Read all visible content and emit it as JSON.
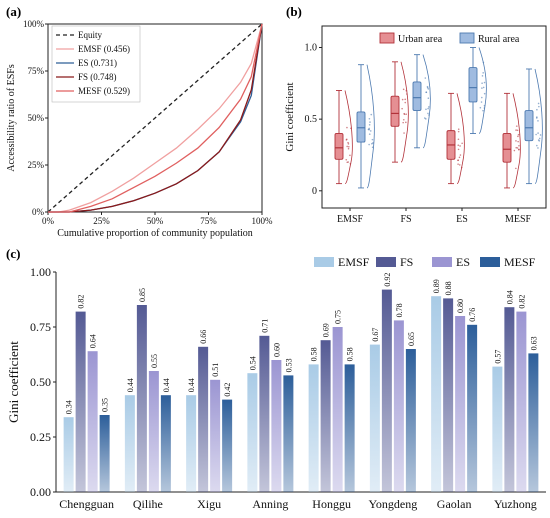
{
  "panel_labels": {
    "a": "(a)",
    "b": "(b)",
    "c": "(c)"
  },
  "colors": {
    "equity": "#222222",
    "emsf_curve": "#f0a0a0",
    "es_curve": "#2f5f98",
    "fs_curve": "#8b1a1a",
    "mesf_curve": "#e06060",
    "urban_fill": "#e58f93",
    "urban_edge": "#b2323a",
    "rural_fill": "#9fbbe0",
    "rural_edge": "#4d7ab0",
    "c_emsf": "#a9cbe6",
    "c_fs": "#545a94",
    "c_es": "#9b95d2",
    "c_mesf": "#2c5e9a"
  },
  "chart_data": [
    {
      "panel": "a",
      "type": "line",
      "xlabel": "Cumulative proportion of community population",
      "ylabel": "Accessibility ratio of ESFs",
      "xlim": [
        0,
        100
      ],
      "ylim": [
        0,
        100
      ],
      "xticks": [
        "0%",
        "25%",
        "50%",
        "75%",
        "100%"
      ],
      "yticks": [
        "0%",
        "25%",
        "50%",
        "75%",
        "100%"
      ],
      "legend_position": "top-left",
      "series": [
        {
          "name": "Equity",
          "style": "dashed",
          "x": [
            0,
            100
          ],
          "y": [
            0,
            100
          ]
        },
        {
          "name": "EMSF (0.456)",
          "x": [
            0,
            5,
            10,
            20,
            30,
            40,
            50,
            60,
            70,
            80,
            90,
            95,
            100
          ],
          "y": [
            0,
            0,
            1,
            5,
            11,
            18,
            26,
            34,
            44,
            55,
            69,
            79,
            100
          ]
        },
        {
          "name": "ES (0.731)",
          "x": [
            0,
            10,
            20,
            30,
            40,
            50,
            60,
            70,
            80,
            90,
            95,
            100
          ],
          "y": [
            0,
            0,
            1,
            3,
            6,
            10,
            15,
            22,
            32,
            48,
            62,
            100
          ]
        },
        {
          "name": "FS (0.748)",
          "x": [
            0,
            10,
            20,
            30,
            40,
            50,
            60,
            70,
            80,
            90,
            95,
            100
          ],
          "y": [
            0,
            0,
            1,
            3,
            6,
            10,
            15,
            22,
            32,
            49,
            65,
            100
          ]
        },
        {
          "name": "MESF (0.529)",
          "x": [
            0,
            10,
            20,
            30,
            40,
            50,
            60,
            70,
            80,
            90,
            95,
            100
          ],
          "y": [
            0,
            0,
            3,
            7,
            13,
            19,
            26,
            34,
            45,
            60,
            72,
            100
          ]
        }
      ]
    },
    {
      "panel": "b",
      "type": "box",
      "ylabel": "Gini coefficient",
      "ylim": [
        -0.12,
        1.15
      ],
      "yticks": [
        "0",
        "0.5",
        "1.0"
      ],
      "legend_position": "top-right",
      "categories": [
        "EMSF",
        "FS",
        "ES",
        "MESF"
      ],
      "series": [
        {
          "name": "Urban area",
          "boxes": [
            {
              "q1": 0.22,
              "median": 0.3,
              "q3": 0.4,
              "whisker_low": 0.05,
              "whisker_high": 0.7,
              "mean": 0.33
            },
            {
              "q1": 0.45,
              "median": 0.54,
              "q3": 0.66,
              "whisker_low": 0.2,
              "whisker_high": 0.9,
              "mean": 0.55
            },
            {
              "q1": 0.22,
              "median": 0.32,
              "q3": 0.42,
              "whisker_low": 0.05,
              "whisker_high": 0.68,
              "mean": 0.33
            },
            {
              "q1": 0.2,
              "median": 0.29,
              "q3": 0.4,
              "whisker_low": 0.02,
              "whisker_high": 0.68,
              "mean": 0.31
            }
          ]
        },
        {
          "name": "Rural area",
          "boxes": [
            {
              "q1": 0.34,
              "median": 0.44,
              "q3": 0.55,
              "whisker_low": 0.02,
              "whisker_high": 0.88,
              "mean": 0.45
            },
            {
              "q1": 0.56,
              "median": 0.65,
              "q3": 0.76,
              "whisker_low": 0.3,
              "whisker_high": 0.95,
              "mean": 0.65
            },
            {
              "q1": 0.62,
              "median": 0.72,
              "q3": 0.86,
              "whisker_low": 0.4,
              "whisker_high": 1.0,
              "mean": 0.73
            },
            {
              "q1": 0.35,
              "median": 0.44,
              "q3": 0.56,
              "whisker_low": 0.05,
              "whisker_high": 0.85,
              "mean": 0.45
            }
          ]
        }
      ]
    },
    {
      "panel": "c",
      "type": "bar",
      "ylabel": "Gini coefficient",
      "ylim": [
        0,
        1
      ],
      "yticks": [
        "0.00",
        "0.25",
        "0.50",
        "0.75",
        "1.00"
      ],
      "legend_position": "top-right",
      "categories": [
        "Chengguan",
        "Qilihe",
        "Xigu",
        "Anning",
        "Honggu",
        "Yongdeng",
        "Gaolan",
        "Yuzhong"
      ],
      "series": [
        {
          "name": "EMSF",
          "values": [
            0.34,
            0.44,
            0.44,
            0.54,
            0.58,
            0.67,
            0.89,
            0.57
          ],
          "labels": [
            "0.34",
            "0.44",
            "0.44",
            "0.54",
            "0.58",
            "0.67",
            "0.89",
            "0.57"
          ]
        },
        {
          "name": "FS",
          "values": [
            0.82,
            0.85,
            0.66,
            0.71,
            0.69,
            0.92,
            0.88,
            0.84
          ],
          "labels": [
            "0.82",
            "0.85",
            "0.66",
            "0.71",
            "0.69",
            "0.92",
            "0.88",
            "0.84"
          ]
        },
        {
          "name": "ES",
          "values": [
            0.64,
            0.55,
            0.51,
            0.6,
            0.75,
            0.78,
            0.8,
            0.82
          ],
          "labels": [
            "0.64",
            "0.55",
            "0.51",
            "0.60",
            "0.75",
            "0.78",
            "0.80",
            "0.82"
          ]
        },
        {
          "name": "MESF",
          "values": [
            0.35,
            0.44,
            0.42,
            0.53,
            0.58,
            0.65,
            0.76,
            0.63
          ],
          "labels": [
            "0.35",
            "0.44",
            "0.42",
            "0.53",
            "0.58",
            "0.65",
            "0.76",
            "0.63"
          ]
        }
      ]
    }
  ]
}
